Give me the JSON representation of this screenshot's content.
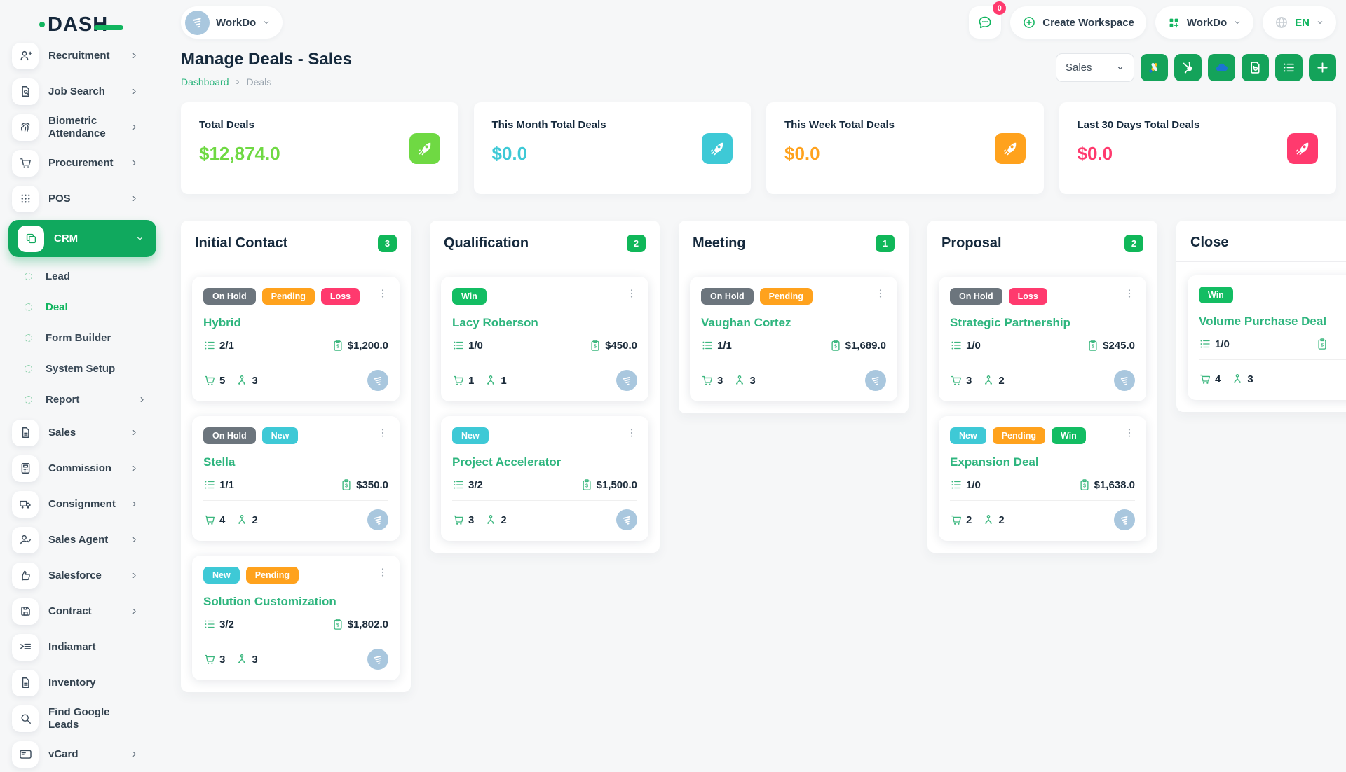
{
  "brand": {
    "logo_text": "DASH"
  },
  "header": {
    "workspace_switcher": {
      "label": "WorkDo"
    },
    "messages_badge": "0",
    "create_workspace_label": "Create Workspace",
    "workspace_menu_label": "WorkDo",
    "language_code": "EN"
  },
  "sidebar": {
    "items": [
      {
        "label": "Recruitment",
        "icon": "person-plus-icon",
        "chevron": "right"
      },
      {
        "label": "Job Search",
        "icon": "doc-search-icon",
        "chevron": "right"
      },
      {
        "label": "Biometric Attendance",
        "icon": "fingerprint-icon",
        "chevron": "right"
      },
      {
        "label": "Procurement",
        "icon": "cart-icon",
        "chevron": "right"
      },
      {
        "label": "POS",
        "icon": "grid-dots-icon",
        "chevron": "right"
      },
      {
        "label": "CRM",
        "icon": "copy-icon",
        "chevron": "down",
        "active": true
      },
      {
        "label": "Lead",
        "type": "sub"
      },
      {
        "label": "Deal",
        "type": "sub",
        "active": true
      },
      {
        "label": "Form Builder",
        "type": "sub"
      },
      {
        "label": "System Setup",
        "type": "sub"
      },
      {
        "label": "Report",
        "type": "sub",
        "chevron": "right"
      },
      {
        "label": "Sales",
        "icon": "file-icon",
        "chevron": "right"
      },
      {
        "label": "Commission",
        "icon": "calculator-icon",
        "chevron": "right"
      },
      {
        "label": "Consignment",
        "icon": "truck-icon",
        "chevron": "right"
      },
      {
        "label": "Sales Agent",
        "icon": "person-check-icon",
        "chevron": "right"
      },
      {
        "label": "Salesforce",
        "icon": "thumbs-up-icon",
        "chevron": "right"
      },
      {
        "label": "Contract",
        "icon": "floppy-icon",
        "chevron": "right"
      },
      {
        "label": "Indiamart",
        "icon": "list-arrow-icon"
      },
      {
        "label": "Inventory",
        "icon": "file-icon"
      },
      {
        "label": "Find Google Leads",
        "icon": "search-icon"
      },
      {
        "label": "vCard",
        "icon": "card-icon",
        "chevron": "right"
      }
    ]
  },
  "page": {
    "title": "Manage Deals - Sales",
    "breadcrumb": [
      {
        "label": "Dashboard"
      },
      {
        "label": "Deals"
      }
    ],
    "pipeline_select": {
      "value": "Sales"
    },
    "toolbar": [
      {
        "name": "google-ads-button",
        "icon": "google-ads-icon"
      },
      {
        "name": "hubspot-button",
        "icon": "hubspot-icon"
      },
      {
        "name": "onedrive-button",
        "icon": "onedrive-icon"
      },
      {
        "name": "export-button",
        "icon": "export-icon"
      },
      {
        "name": "list-view-button",
        "icon": "list-icon"
      },
      {
        "name": "add-deal-button",
        "icon": "plus-icon"
      }
    ]
  },
  "stats": [
    {
      "label": "Total Deals",
      "value": "$12,874.0",
      "color": "#6fd943"
    },
    {
      "label": "This Month Total Deals",
      "value": "$0.0",
      "color": "#3ec9d6"
    },
    {
      "label": "This Week Total Deals",
      "value": "$0.0",
      "color": "#ffa21d"
    },
    {
      "label": "Last 30 Days Total Deals",
      "value": "$0.0",
      "color": "#ff3a6e"
    }
  ],
  "badge_colors": {
    "On Hold": "#6c757d",
    "Pending": "#ffa21d",
    "Loss": "#ff3a6e",
    "New": "#3ec9d6",
    "Win": "#13bd63"
  },
  "board": {
    "columns": [
      {
        "name": "Initial Contact",
        "count": "3",
        "cards": [
          {
            "badges": [
              "On Hold",
              "Pending",
              "Loss"
            ],
            "title": "Hybrid",
            "tasks": "2/1",
            "amount": "$1,200.0",
            "products": "5",
            "users": "3"
          },
          {
            "badges": [
              "On Hold",
              "New"
            ],
            "title": "Stella",
            "tasks": "1/1",
            "amount": "$350.0",
            "products": "4",
            "users": "2"
          },
          {
            "badges": [
              "New",
              "Pending"
            ],
            "title": "Solution Customization",
            "tasks": "3/2",
            "amount": "$1,802.0",
            "products": "3",
            "users": "3"
          }
        ]
      },
      {
        "name": "Qualification",
        "count": "2",
        "cards": [
          {
            "badges": [
              "Win"
            ],
            "title": "Lacy Roberson",
            "tasks": "1/0",
            "amount": "$450.0",
            "products": "1",
            "users": "1"
          },
          {
            "badges": [
              "New"
            ],
            "title": "Project Accelerator",
            "tasks": "3/2",
            "amount": "$1,500.0",
            "products": "3",
            "users": "2"
          }
        ]
      },
      {
        "name": "Meeting",
        "count": "1",
        "cards": [
          {
            "badges": [
              "On Hold",
              "Pending"
            ],
            "title": "Vaughan Cortez",
            "tasks": "1/1",
            "amount": "$1,689.0",
            "products": "3",
            "users": "3"
          }
        ]
      },
      {
        "name": "Proposal",
        "count": "2",
        "cards": [
          {
            "badges": [
              "On Hold",
              "Loss"
            ],
            "title": "Strategic Partnership",
            "tasks": "1/0",
            "amount": "$245.0",
            "products": "3",
            "users": "2"
          },
          {
            "badges": [
              "New",
              "Pending",
              "Win"
            ],
            "title": "Expansion Deal",
            "tasks": "1/0",
            "amount": "$1,638.0",
            "products": "2",
            "users": "2"
          }
        ]
      },
      {
        "name": "Close",
        "count": "",
        "cards": [
          {
            "badges": [
              "Win"
            ],
            "title": "Volume Purchase Deal",
            "tasks": "1/0",
            "amount": "",
            "products": "4",
            "users": "3"
          }
        ]
      }
    ]
  }
}
